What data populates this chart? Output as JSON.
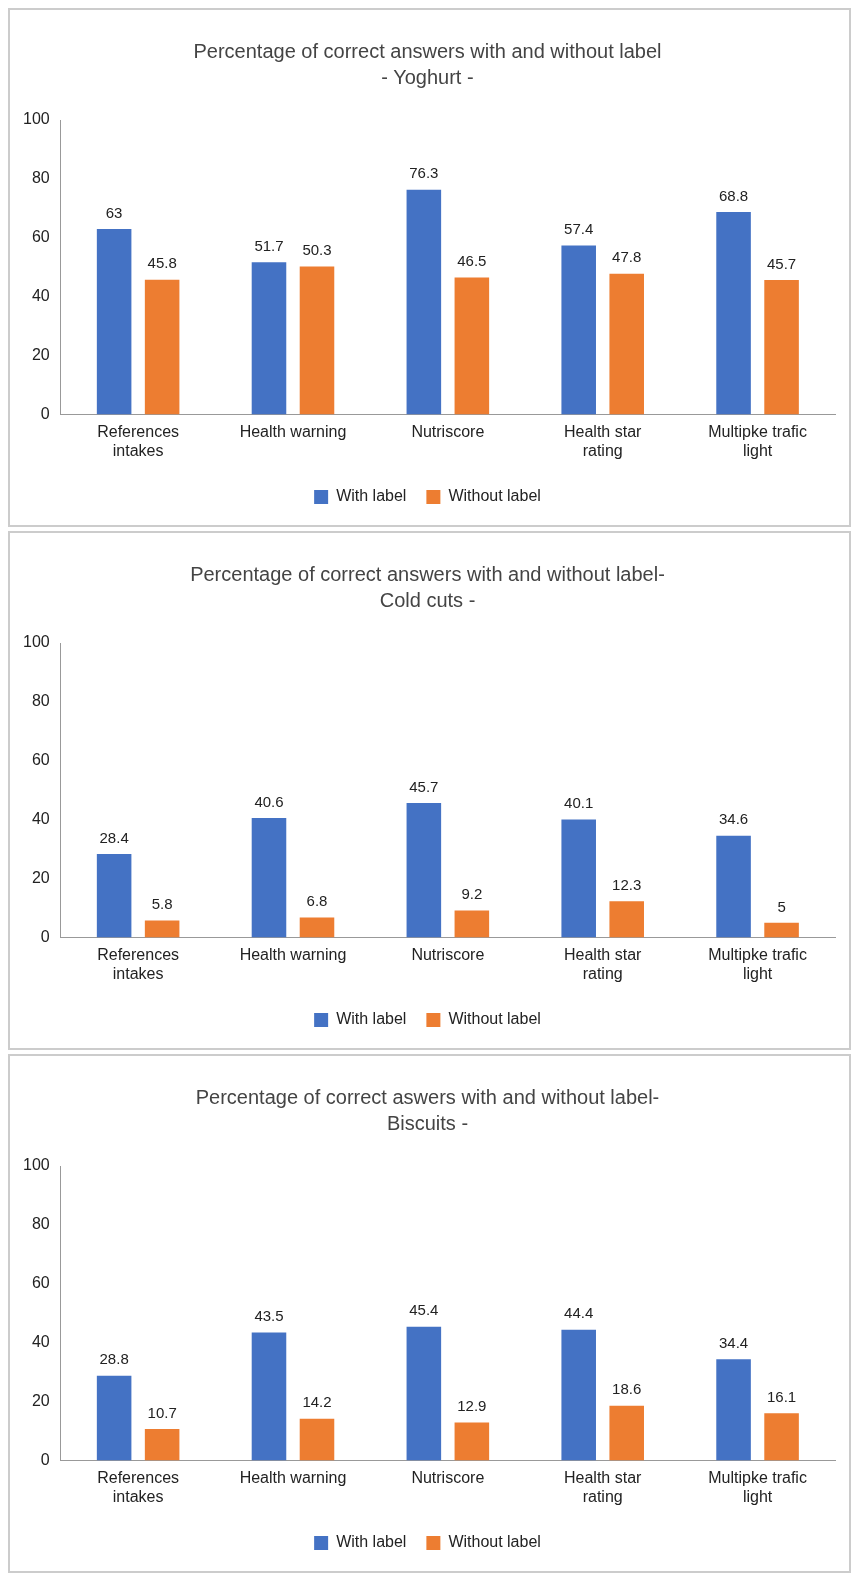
{
  "chart_data": [
    {
      "type": "bar",
      "title": "Percentage of correct answers with and without label",
      "subtitle": "- Yoghurt -",
      "categories": [
        "References intakes",
        "Health warning",
        "Nutriscore",
        "Health star rating",
        "Multipke trafic light"
      ],
      "series": [
        {
          "name": "With label",
          "color": "#4472c4",
          "values": [
            63,
            51.7,
            76.3,
            57.4,
            68.8
          ]
        },
        {
          "name": "Without label",
          "color": "#ed7d31",
          "values": [
            45.8,
            50.3,
            46.5,
            47.8,
            45.7
          ]
        }
      ],
      "ylim": [
        0,
        100
      ],
      "yticks": [
        0,
        20,
        40,
        60,
        80,
        100
      ],
      "grid": false,
      "legend": "bottom",
      "data_labels": true
    },
    {
      "type": "bar",
      "title": "Percentage of correct answers with and without label-",
      "subtitle": "Cold cuts -",
      "categories": [
        "References intakes",
        "Health warning",
        "Nutriscore",
        "Health star rating",
        "Multipke trafic light"
      ],
      "series": [
        {
          "name": "With label",
          "color": "#4472c4",
          "values": [
            28.4,
            40.6,
            45.7,
            40.1,
            34.6
          ]
        },
        {
          "name": "Without label",
          "color": "#ed7d31",
          "values": [
            5.8,
            6.8,
            9.2,
            12.3,
            5
          ]
        }
      ],
      "ylim": [
        0,
        100
      ],
      "yticks": [
        0,
        20,
        40,
        60,
        80,
        100
      ],
      "grid": false,
      "legend": "bottom",
      "data_labels": true
    },
    {
      "type": "bar",
      "title": "Percentage of correct aswers with and without label-",
      "subtitle": "Biscuits -",
      "categories": [
        "References intakes",
        "Health warning",
        "Nutriscore",
        "Health star rating",
        "Multipke trafic light"
      ],
      "series": [
        {
          "name": "With label",
          "color": "#4472c4",
          "values": [
            28.8,
            43.5,
            45.4,
            44.4,
            34.4
          ]
        },
        {
          "name": "Without label",
          "color": "#ed7d31",
          "values": [
            10.7,
            14.2,
            12.9,
            18.6,
            16.1
          ]
        }
      ],
      "ylim": [
        0,
        100
      ],
      "yticks": [
        0,
        20,
        40,
        60,
        80,
        100
      ],
      "grid": false,
      "legend": "bottom",
      "data_labels": true
    }
  ]
}
